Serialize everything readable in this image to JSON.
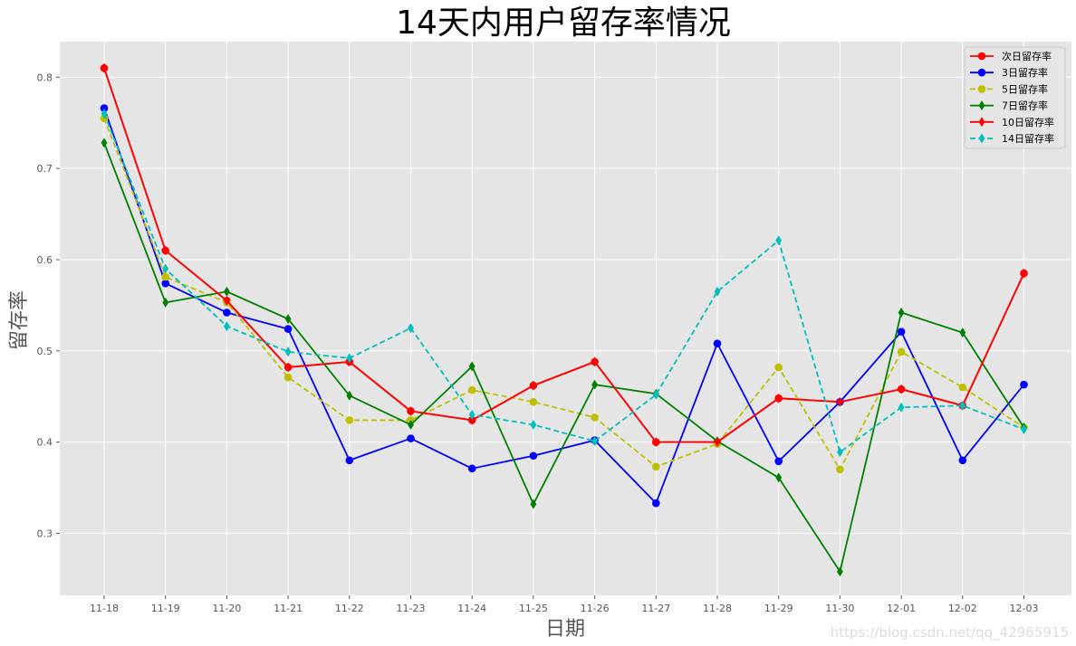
{
  "chart_data": {
    "type": "line",
    "title": "14天内用户留存率情况",
    "xlabel": "日期",
    "ylabel": "留存率",
    "categories": [
      "11-18",
      "11-19",
      "11-20",
      "11-21",
      "11-22",
      "11-23",
      "11-24",
      "11-25",
      "11-26",
      "11-27",
      "11-28",
      "11-29",
      "11-30",
      "12-01",
      "12-02",
      "12-03"
    ],
    "ylim": [
      0.232,
      0.839
    ],
    "yticks": [
      0.3,
      0.4,
      0.5,
      0.6,
      0.7,
      0.8
    ],
    "ytick_labels": [
      "0.3",
      "0.4",
      "0.5",
      "0.6",
      "0.7",
      "0.8"
    ],
    "grid": true,
    "legend_position": "top-right",
    "series": [
      {
        "name": "次日留存率",
        "color": "#ff0000",
        "dash": "solid",
        "marker": "circle",
        "values": [
          0.81,
          0.61,
          0.555,
          0.482,
          0.488,
          0.434,
          0.424,
          0.462,
          0.488,
          0.4,
          0.4,
          0.448,
          0.444,
          0.458,
          0.44,
          0.585
        ]
      },
      {
        "name": "3日留存率",
        "color": "#0000ff",
        "dash": "solid",
        "marker": "circle",
        "values": [
          0.766,
          0.574,
          0.542,
          0.524,
          0.38,
          0.404,
          0.371,
          0.385,
          0.402,
          0.333,
          0.508,
          0.379,
          0.444,
          0.521,
          0.38,
          0.463
        ]
      },
      {
        "name": "5日留存率",
        "color": "#bfbf00",
        "dash": "dashed",
        "marker": "circle",
        "values": [
          0.755,
          0.581,
          0.553,
          0.471,
          0.424,
          0.424,
          0.457,
          0.444,
          0.427,
          0.373,
          0.398,
          0.482,
          0.37,
          0.499,
          0.46,
          0.416
        ]
      },
      {
        "name": "7日留存率",
        "color": "#008000",
        "dash": "solid",
        "marker": "thin_diamond",
        "values": [
          0.728,
          0.553,
          0.565,
          0.535,
          0.451,
          0.419,
          0.483,
          0.332,
          0.463,
          0.453,
          0.401,
          0.361,
          0.258,
          0.542,
          0.52,
          0.416
        ]
      },
      {
        "name": "10日留存率",
        "color": "#ff0000",
        "dash": "solid",
        "marker": "thin_diamond",
        "values": [
          0.81,
          0.61,
          0.555,
          0.482,
          0.488,
          0.434,
          0.424,
          0.462,
          0.488,
          0.4,
          0.4,
          0.448,
          0.444,
          0.458,
          0.44,
          0.585
        ]
      },
      {
        "name": "14日留存率",
        "color": "#00bfbf",
        "dash": "dashed",
        "marker": "thin_diamond",
        "values": [
          0.76,
          0.59,
          0.527,
          0.499,
          0.492,
          0.525,
          0.43,
          0.419,
          0.401,
          0.452,
          0.565,
          0.621,
          0.389,
          0.438,
          0.44,
          0.414
        ]
      }
    ]
  },
  "watermark": "https://blog.csdn.net/qq_42965915"
}
